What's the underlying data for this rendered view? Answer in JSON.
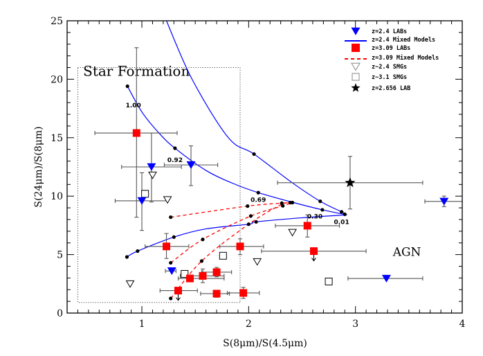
{
  "chart_data": {
    "type": "scatter",
    "xlabel": "S(8μm)/S(4.5μm)",
    "ylabel": "S(24μm)/S(8μm)",
    "xlim": [
      0.3,
      4
    ],
    "ylim": [
      0,
      25
    ],
    "xticks": [
      "1",
      "2",
      "3",
      "4"
    ],
    "xtick_values": [
      1,
      2,
      3,
      4
    ],
    "yticks": [
      "0",
      "5",
      "10",
      "15",
      "20",
      "25"
    ],
    "ytick_values": [
      0,
      5,
      10,
      15,
      20,
      25
    ],
    "grid": false,
    "legend_position": "top-right",
    "colors": {
      "blue": "#0000ff",
      "red": "#ff0000",
      "errorbar": "#555555",
      "black": "#000000"
    },
    "legend": [
      {
        "label": "z=2.4 LABs",
        "symbol": "filled-triangle-down",
        "color": "#0000ff"
      },
      {
        "label": "z=2.4 Mixed Models",
        "symbol": "solid-line",
        "color": "#0000ff"
      },
      {
        "label": "z=3.09 LABs",
        "symbol": "filled-square",
        "color": "#ff0000"
      },
      {
        "label": "z=3.09 Mixed Models",
        "symbol": "dashed-line",
        "color": "#ff0000"
      },
      {
        "label": "z~2.4 SMGs",
        "symbol": "open-triangle-down",
        "color": "#000000"
      },
      {
        "label": "z~3.1 SMGs",
        "symbol": "open-square",
        "color": "#000000"
      },
      {
        "label": "z=2.656 LAB",
        "symbol": "filled-star",
        "color": "#000000"
      }
    ],
    "regions": [
      {
        "label": "Star Formation",
        "box": {
          "x": [
            0.4,
            1.92
          ],
          "y": [
            0.9,
            21
          ]
        },
        "label_at": [
          0.45,
          20.3
        ]
      },
      {
        "label": "AGN",
        "label_at": [
          3.35,
          4.9
        ]
      }
    ],
    "models_z24": [
      {
        "points": [
          [
            1.23,
            25
          ],
          [
            1.47,
            20
          ],
          [
            1.81,
            15
          ],
          [
            2.05,
            13.6
          ],
          [
            2.4,
            11.2
          ],
          [
            2.67,
            9.56
          ],
          [
            2.87,
            8.66
          ],
          [
            2.92,
            8.4
          ]
        ],
        "markers": [
          [
            2.05,
            13.6
          ],
          [
            2.67,
            9.56
          ],
          [
            2.87,
            8.66
          ]
        ]
      },
      {
        "points": [
          [
            0.865,
            19.4
          ],
          [
            1.0,
            17.2
          ],
          [
            1.16,
            15.4
          ],
          [
            1.31,
            14.1
          ],
          [
            1.6,
            12.2
          ],
          [
            1.85,
            11.1
          ],
          [
            2.09,
            10.3
          ],
          [
            2.4,
            9.5
          ],
          [
            2.69,
            8.83
          ],
          [
            2.92,
            8.4
          ]
        ],
        "markers": [
          [
            0.865,
            19.4
          ],
          [
            1.31,
            14.1
          ],
          [
            2.09,
            10.3
          ],
          [
            2.69,
            8.83
          ],
          [
            2.9,
            8.45
          ]
        ]
      },
      {
        "points": [
          [
            0.86,
            4.8
          ],
          [
            0.96,
            5.3
          ],
          [
            1.3,
            6.5
          ],
          [
            1.6,
            7.2
          ],
          [
            2.0,
            7.6
          ],
          [
            2.07,
            7.8
          ],
          [
            2.5,
            8.15
          ],
          [
            2.92,
            8.4
          ]
        ],
        "markers": [
          [
            0.86,
            4.8
          ],
          [
            0.96,
            5.3
          ],
          [
            1.3,
            6.5
          ],
          [
            2.0,
            7.6
          ],
          [
            2.07,
            7.8
          ]
        ]
      }
    ],
    "models_z309": [
      {
        "points": [
          [
            1.27,
            8.2
          ],
          [
            1.99,
            9.15
          ],
          [
            2.31,
            9.4
          ],
          [
            2.41,
            9.45
          ]
        ],
        "markers": [
          [
            1.27,
            8.2
          ],
          [
            1.99,
            9.15
          ],
          [
            2.31,
            9.4
          ],
          [
            2.41,
            9.45
          ]
        ]
      },
      {
        "points": [
          [
            1.27,
            4.3
          ],
          [
            1.57,
            6.3
          ],
          [
            2.02,
            8.3
          ],
          [
            2.32,
            9.17
          ],
          [
            2.41,
            9.45
          ]
        ],
        "markers": [
          [
            1.27,
            4.3
          ],
          [
            1.57,
            6.3
          ],
          [
            2.02,
            8.3
          ],
          [
            2.32,
            9.17
          ]
        ]
      },
      {
        "points": [
          [
            1.27,
            1.25
          ],
          [
            1.56,
            4.45
          ],
          [
            2.0,
            7.6
          ],
          [
            2.3,
            9.25
          ],
          [
            2.41,
            9.45
          ]
        ],
        "markers": [
          [
            1.27,
            1.25
          ],
          [
            1.56,
            4.45
          ],
          [
            2.39,
            9.45
          ]
        ]
      }
    ],
    "model_labels": [
      {
        "text": "1.00",
        "at": [
          0.92,
          17.6
        ]
      },
      {
        "text": "0.92",
        "at": [
          1.31,
          12.9
        ]
      },
      {
        "text": "0.69",
        "at": [
          2.09,
          9.5
        ]
      },
      {
        "text": "0.30",
        "at": [
          2.62,
          8.1
        ]
      },
      {
        "text": "0.01",
        "at": [
          2.87,
          7.6
        ]
      }
    ],
    "z24_labs": [
      {
        "x": 1.09,
        "y": 12.5,
        "xerr": [
          0.81,
          1.37
        ],
        "yerr": [
          9.5,
          15.4
        ]
      },
      {
        "x": 1.46,
        "y": 12.67,
        "xerr": [
          1.21,
          1.71
        ],
        "yerr": [
          10.9,
          14.3
        ]
      },
      {
        "x": 1.0,
        "y": 9.6,
        "xerr": [
          0.75,
          1.24
        ],
        "yerr": [
          7.07,
          12.0
        ]
      },
      {
        "x": 1.28,
        "y": 3.6,
        "xerr": [
          1.22,
          1.32
        ]
      },
      {
        "x": 3.29,
        "y": 2.96,
        "xerr": [
          2.93,
          3.63
        ]
      },
      {
        "x": 3.83,
        "y": 9.55,
        "xerr": [
          3.65,
          4.0
        ],
        "yerr": [
          9.1,
          10.0
        ]
      }
    ],
    "z309_labs": [
      {
        "x": 0.95,
        "y": 15.4,
        "xerr": [
          0.56,
          1.33
        ],
        "yerr": [
          8.2,
          22.7
        ]
      },
      {
        "x": 1.23,
        "y": 5.7,
        "xerr": [
          1.03,
          1.44
        ],
        "yerr": [
          4.67,
          6.8
        ]
      },
      {
        "x": 1.92,
        "y": 5.7,
        "xerr": [
          1.73,
          2.14
        ],
        "yerr": [
          5.0,
          6.35
        ]
      },
      {
        "x": 1.45,
        "y": 2.96,
        "xerr": [
          1.34,
          1.77
        ]
      },
      {
        "x": 1.57,
        "y": 3.18,
        "xerr": [
          1.36,
          1.77
        ],
        "yerr": [
          2.6,
          3.77
        ]
      },
      {
        "x": 1.7,
        "y": 3.5,
        "xerr": [
          1.56,
          1.84
        ],
        "yerr": [
          3.1,
          3.9
        ]
      },
      {
        "x": 1.34,
        "y": 1.92,
        "xerr": [
          1.17,
          1.52
        ],
        "upper_limit": true
      },
      {
        "x": 1.7,
        "y": 1.66,
        "xerr": [
          1.55,
          1.82
        ],
        "yerr": [
          1.35,
          1.95
        ]
      },
      {
        "x": 1.95,
        "y": 1.72,
        "xerr": [
          1.8,
          2.1
        ],
        "yerr": [
          1.25,
          2.2
        ]
      },
      {
        "x": 2.55,
        "y": 7.47,
        "xerr": [
          2.25,
          2.85
        ],
        "yerr": [
          6.5,
          8.4
        ]
      },
      {
        "x": 2.61,
        "y": 5.3,
        "xerr": [
          2.12,
          3.1
        ],
        "upper_limit": true
      }
    ],
    "z24_smgs": [
      {
        "x": 1.1,
        "y": 11.8
      },
      {
        "x": 1.24,
        "y": 9.7
      },
      {
        "x": 0.89,
        "y": 2.5
      },
      {
        "x": 2.08,
        "y": 4.4
      },
      {
        "x": 2.41,
        "y": 6.9
      }
    ],
    "z31_smgs": [
      {
        "x": 1.03,
        "y": 10.2
      },
      {
        "x": 1.76,
        "y": 4.9
      },
      {
        "x": 1.4,
        "y": 3.35
      },
      {
        "x": 2.75,
        "y": 2.7
      }
    ],
    "z2656_lab": [
      {
        "x": 2.95,
        "y": 11.15,
        "xerr": [
          2.27,
          3.63
        ],
        "yerr": [
          8.9,
          13.4
        ]
      }
    ]
  }
}
